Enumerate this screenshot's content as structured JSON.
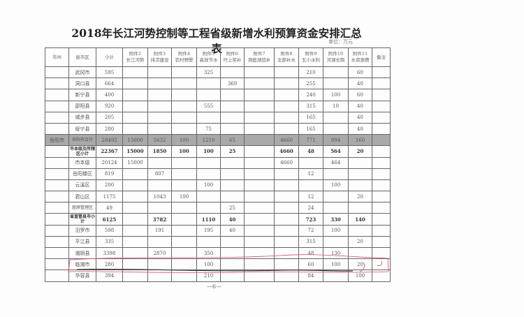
{
  "title": "2018年长江河势控制等工程省级新增水利预算资金安排汇总表",
  "unit": "单位：万元",
  "headers": [
    "市州",
    "县市区",
    "小计",
    "附件2\n长江河势",
    "附件3\n排涝建设",
    "附件4\n农村预警",
    "附件5\n高效节水",
    "附件6\n圩上奖补",
    "附件7\n洞庭湖追补",
    "附件8\n北部补水",
    "附件9\n五小水利",
    "附件10\n河湖长制",
    "附件11\n水资源费",
    "备注"
  ],
  "rows": [
    [
      "",
      "武冈市",
      "595",
      "",
      "",
      "",
      "325",
      "",
      "",
      "",
      "210",
      "",
      "60",
      ""
    ],
    [
      "",
      "洞口县",
      "664",
      "",
      "",
      "",
      "",
      "369",
      "",
      "",
      "255",
      "",
      "40",
      ""
    ],
    [
      "",
      "新宁县",
      "400",
      "",
      "",
      "",
      "",
      "",
      "",
      "",
      "240",
      "100",
      "60",
      ""
    ],
    [
      "",
      "邵阳县",
      "920",
      "",
      "",
      "",
      "555",
      "",
      "",
      "",
      "315",
      "10",
      "40",
      ""
    ],
    [
      "",
      "城步县",
      "205",
      "",
      "",
      "",
      "",
      "",
      "",
      "",
      "165",
      "",
      "40",
      ""
    ],
    [
      "",
      "绥宁县",
      "280",
      "",
      "",
      "",
      "75",
      "",
      "",
      "",
      "165",
      "",
      "40",
      ""
    ],
    [
      "岳阳市",
      "岳阳市合计",
      "28492",
      "15000",
      "5632",
      "100",
      "1210",
      "65",
      "",
      "4660",
      "771",
      "894",
      "160",
      ""
    ],
    [
      "",
      "市本级及所辖区小计",
      "22367",
      "15000",
      "1850",
      "100",
      "100",
      "25",
      "",
      "4660",
      "48",
      "564",
      "20",
      ""
    ],
    [
      "",
      "市本级",
      "20124",
      "15000",
      "",
      "",
      "",
      "",
      "",
      "4660",
      "",
      "464",
      "",
      ""
    ],
    [
      "",
      "岳阳楼区",
      "819",
      "",
      "807",
      "",
      "",
      "",
      "",
      "",
      "12",
      "",
      "",
      ""
    ],
    [
      "",
      "云溪区",
      "200",
      "",
      "",
      "",
      "100",
      "",
      "",
      "",
      "",
      "100",
      "",
      ""
    ],
    [
      "",
      "君山区",
      "1175",
      "",
      "1043",
      "100",
      "",
      "",
      "",
      "",
      "12",
      "",
      "20",
      ""
    ],
    [
      "",
      "屈原管理区",
      "49",
      "",
      "",
      "",
      "",
      "25",
      "",
      "",
      "24",
      "",
      "",
      ""
    ],
    [
      "",
      "省直管县市小计",
      "6125",
      "",
      "3782",
      "",
      "1110",
      "40",
      "",
      "",
      "723",
      "330",
      "140",
      ""
    ],
    [
      "",
      "汨罗市",
      "598",
      "",
      "191",
      "",
      "195",
      "40",
      "",
      "",
      "72",
      "100",
      "",
      ""
    ],
    [
      "",
      "平江县",
      "335",
      "",
      "",
      "",
      "",
      "",
      "",
      "",
      "315",
      "",
      "20",
      ""
    ],
    [
      "",
      "湘阴县",
      "3398",
      "",
      "2870",
      "",
      "350",
      "",
      "",
      "",
      "48",
      "130",
      "",
      ""
    ],
    [
      "",
      "临湘市",
      "280",
      "",
      "",
      "",
      "100",
      "",
      "",
      "",
      "60",
      "100",
      "20",
      ""
    ],
    [
      "",
      "华容县",
      "394",
      "",
      "",
      "",
      "210",
      "",
      "",
      "",
      "84",
      "",
      "100",
      ""
    ]
  ],
  "page_number": "—6—",
  "colors": {
    "gray_row": "#a9a9a9",
    "annotation": "#d0506a"
  }
}
